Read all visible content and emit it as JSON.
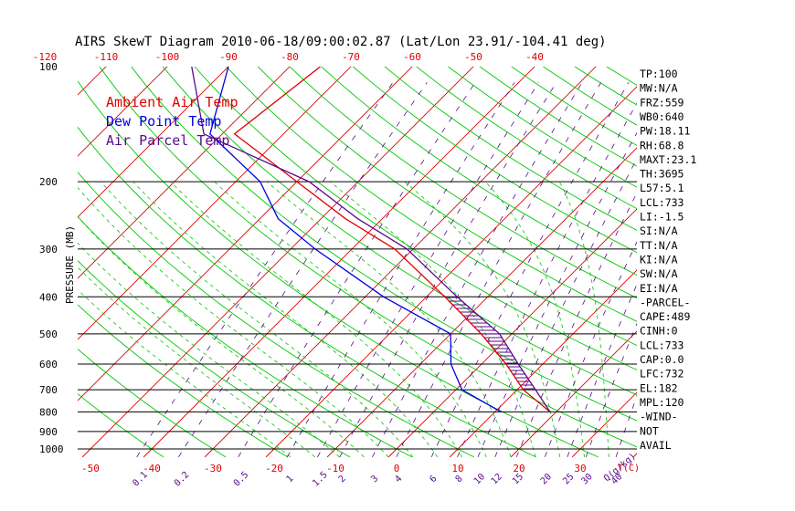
{
  "chart_data": {
    "type": "line",
    "title": "AIRS SkewT Diagram 2010-06-18/09:00:02.87 (Lat/Lon 23.91/-104.41 deg)",
    "ylabel": "PRESSURE (MB)",
    "xlabel": "T(C)",
    "mixing_ratio_unit": "Q(g/kg)",
    "ylim": [
      1000,
      100
    ],
    "xlim_bottom": [
      -50,
      30
    ],
    "y_ticks": [
      100,
      200,
      300,
      400,
      500,
      600,
      700,
      800,
      900,
      1000
    ],
    "x_ticks_bottom": [
      -50,
      -40,
      -30,
      -20,
      -10,
      0,
      10,
      20,
      30
    ],
    "x_ticks_top": [
      -120,
      -110,
      -100,
      -90,
      -80,
      -70,
      -60,
      -50,
      -40
    ],
    "mixing_ratio_labels": [
      "0.1",
      "0.2",
      "0.5",
      "1",
      "1.5",
      "2",
      "3",
      "4",
      "6",
      "8",
      "10",
      "12",
      "15",
      "20",
      "25",
      "30",
      "40"
    ],
    "legend": [
      {
        "name": "Ambient Air Temp",
        "color": "#e00000"
      },
      {
        "name": "Dew Point Temp",
        "color": "#0000e0"
      },
      {
        "name": "Air Parcel Temp",
        "color": "#5a0a8a"
      }
    ],
    "series": [
      {
        "name": "Ambient Air Temp",
        "color": "#e00000",
        "points": [
          [
            100,
            -75
          ],
          [
            150,
            -78
          ],
          [
            165,
            -72
          ],
          [
            200,
            -60
          ],
          [
            250,
            -46
          ],
          [
            300,
            -33
          ],
          [
            400,
            -17
          ],
          [
            500,
            -5
          ],
          [
            600,
            4
          ],
          [
            700,
            11
          ],
          [
            800,
            19
          ]
        ]
      },
      {
        "name": "Dew Point Temp",
        "color": "#0000e0",
        "points": [
          [
            100,
            -90
          ],
          [
            150,
            -82
          ],
          [
            200,
            -66
          ],
          [
            250,
            -57
          ],
          [
            300,
            -46
          ],
          [
            400,
            -27
          ],
          [
            500,
            -10
          ],
          [
            600,
            -5
          ],
          [
            700,
            1
          ],
          [
            800,
            11
          ]
        ]
      },
      {
        "name": "Air Parcel Temp",
        "color": "#5a0a8a",
        "points": [
          [
            100,
            -96
          ],
          [
            150,
            -83
          ],
          [
            200,
            -58
          ],
          [
            250,
            -44
          ],
          [
            300,
            -31
          ],
          [
            400,
            -15
          ],
          [
            500,
            -2
          ],
          [
            600,
            6
          ],
          [
            700,
            13
          ],
          [
            800,
            19
          ]
        ]
      }
    ],
    "indices": [
      "TP:100",
      "MW:N/A",
      "FRZ:559",
      "WB0:640",
      "PW:18.11",
      "RH:68.8",
      "MAXT:23.1",
      "TH:3695",
      "L57:5.1",
      "LCL:733",
      "LI:-1.5",
      "SI:N/A",
      "TT:N/A",
      "KI:N/A",
      "SW:N/A",
      "EI:N/A",
      "-PARCEL-",
      "CAPE:489",
      "CINH:0",
      "LCL:733",
      "CAP:0.0",
      "LFC:732",
      "EL:182",
      "MPL:120",
      "-WIND-",
      "NOT",
      "AVAIL"
    ],
    "colors": {
      "isotherm": "#e00000",
      "dry_adiabat": "#00c800",
      "moist_adiabat": "#00c800",
      "mixing_ratio": "#5a0a8a",
      "isobar": "#000000",
      "axis_ticks": "#e00000",
      "mixing_labels": "#5a0a8a"
    },
    "grid": true
  }
}
